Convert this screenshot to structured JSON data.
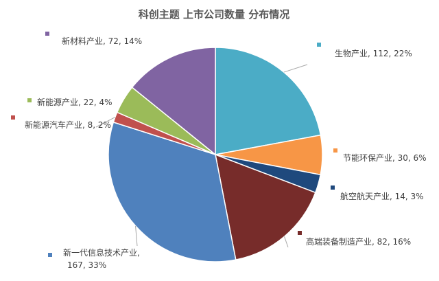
{
  "chart_data": {
    "type": "pie",
    "title": "科创主题 上市公司数量 分布情况",
    "slices": [
      {
        "name": "生物产业",
        "value": 112,
        "percent": "22%",
        "color": "#4bacc6"
      },
      {
        "name": "节能环保产业",
        "value": 30,
        "percent": "6%",
        "color": "#f79646"
      },
      {
        "name": "航空航天产业",
        "value": 14,
        "percent": "3%",
        "color": "#1f497d"
      },
      {
        "name": "高端装备制造产业",
        "value": 82,
        "percent": "16%",
        "color": "#772c2a"
      },
      {
        "name": "新一代信息技术产业",
        "value": 167,
        "percent": "33%",
        "color": "#4f81bd"
      },
      {
        "name": "新能源汽车产业",
        "value": 8,
        "percent": "2%",
        "color": "#c0504d"
      },
      {
        "name": "新能源产业",
        "value": 22,
        "percent": "4%",
        "color": "#9bbb59"
      },
      {
        "name": "新材料产业",
        "value": 72,
        "percent": "14%",
        "color": "#8064a2"
      }
    ],
    "legend": "none"
  }
}
